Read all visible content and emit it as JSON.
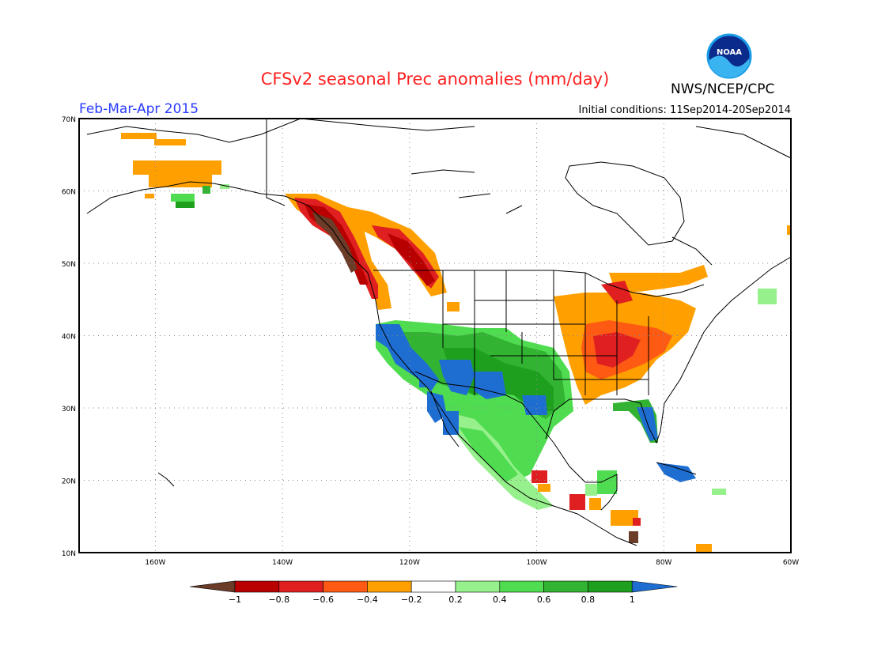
{
  "title": "CFSv2 seasonal Prec anomalies (mm/day)",
  "season": "Feb-Mar-Apr 2015",
  "initial_conditions": "Initial conditions: 11Sep2014-20Sep2014",
  "agency": "NWS/NCEP/CPC",
  "logo_text": "NOAA",
  "map": {
    "lon_range": [
      -172,
      -60
    ],
    "lat_range": [
      10,
      70
    ],
    "lat_labels": [
      "70N",
      "60N",
      "50N",
      "40N",
      "30N",
      "20N",
      "10N"
    ],
    "lon_labels": [
      "160W",
      "140W",
      "120W",
      "100W",
      "80W",
      "60W"
    ],
    "grid": "dotted"
  },
  "colorbar": {
    "labels": [
      "-1",
      "-0.8",
      "-0.6",
      "-0.4",
      "-0.2",
      "0.2",
      "0.4",
      "0.6",
      "0.8",
      "1"
    ],
    "colors": [
      "#6b3c28",
      "#b80000",
      "#e02020",
      "#ff5a14",
      "#ffa000",
      "#ffffff",
      "#96f08c",
      "#50dc50",
      "#32b432",
      "#1ea01e",
      "#1e6ed2"
    ]
  }
}
